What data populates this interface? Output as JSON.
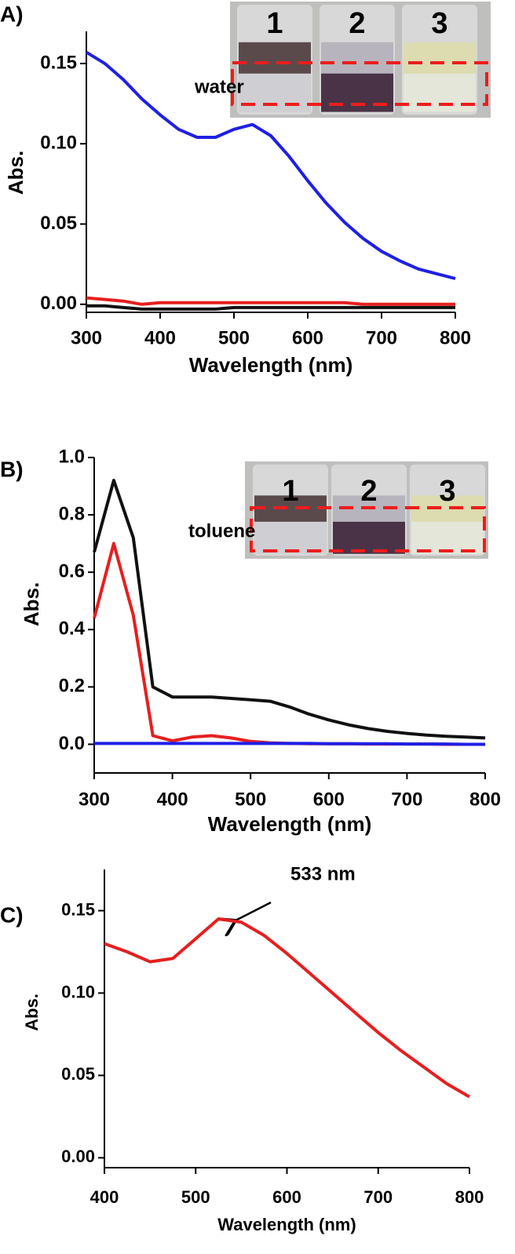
{
  "chart_data": [
    {
      "type": "line",
      "panel": "A)",
      "annotation": "water",
      "inset_labels": [
        "1",
        "2",
        "3"
      ],
      "x_label": "Wavelength (nm)",
      "y_label": "Abs.",
      "x": [
        300,
        325,
        350,
        375,
        400,
        425,
        450,
        475,
        500,
        525,
        550,
        575,
        600,
        625,
        650,
        675,
        700,
        725,
        750,
        775,
        800
      ],
      "series": [
        {
          "color": "#1f1fe6",
          "values": [
            0.157,
            0.15,
            0.14,
            0.128,
            0.118,
            0.109,
            0.104,
            0.104,
            0.109,
            0.112,
            0.105,
            0.092,
            0.077,
            0.063,
            0.051,
            0.041,
            0.033,
            0.027,
            0.022,
            0.019,
            0.016
          ]
        },
        {
          "color": "#e61f1f",
          "values": [
            0.004,
            0.003,
            0.002,
            0.0,
            0.001,
            0.001,
            0.001,
            0.001,
            0.001,
            0.001,
            0.001,
            0.001,
            0.001,
            0.001,
            0.001,
            0.0,
            0.0,
            0.0,
            0.0,
            0.0,
            0.0
          ]
        },
        {
          "color": "#111111",
          "values": [
            -0.001,
            -0.001,
            -0.002,
            -0.003,
            -0.003,
            -0.003,
            -0.003,
            -0.003,
            -0.002,
            -0.002,
            -0.002,
            -0.002,
            -0.002,
            -0.002,
            -0.002,
            -0.002,
            -0.002,
            -0.002,
            -0.002,
            -0.002,
            -0.002
          ]
        }
      ],
      "xlim": [
        300,
        800
      ],
      "xticks": [
        300,
        400,
        500,
        600,
        700,
        800
      ],
      "ylim": [
        -0.005,
        0.17
      ],
      "yticks": [
        {
          "value": 0,
          "label": "0.00"
        },
        {
          "value": 0.05,
          "label": "0.05"
        },
        {
          "value": 0.1,
          "label": "0.10"
        },
        {
          "value": 0.15,
          "label": "0.15"
        }
      ]
    },
    {
      "type": "line",
      "panel": "B)",
      "annotation": "toluene",
      "inset_labels": [
        "1",
        "2",
        "3"
      ],
      "x_label": "Wavelength (nm)",
      "y_label": "Abs.",
      "x": [
        300,
        325,
        350,
        375,
        400,
        425,
        450,
        475,
        500,
        525,
        550,
        575,
        600,
        625,
        650,
        675,
        700,
        725,
        750,
        775,
        800
      ],
      "series": [
        {
          "color": "#111111",
          "values": [
            0.67,
            0.92,
            0.72,
            0.2,
            0.165,
            0.165,
            0.165,
            0.16,
            0.155,
            0.15,
            0.13,
            0.105,
            0.085,
            0.068,
            0.055,
            0.045,
            0.038,
            0.032,
            0.028,
            0.025,
            0.022
          ]
        },
        {
          "color": "#e61f1f",
          "values": [
            0.44,
            0.7,
            0.45,
            0.03,
            0.012,
            0.025,
            0.03,
            0.022,
            0.01,
            0.005,
            0.003,
            0.002,
            0.002,
            0.002,
            0.001,
            0.001,
            0.001,
            0.001,
            0.0,
            0.0,
            0.0
          ]
        },
        {
          "color": "#1f1fe6",
          "values": [
            0.003,
            0.003,
            0.003,
            0.003,
            0.003,
            0.003,
            0.003,
            0.003,
            0.003,
            0.003,
            0.003,
            0.003,
            0.002,
            0.002,
            0.002,
            0.002,
            0.001,
            0.001,
            0.001,
            0.0,
            0.0
          ]
        }
      ],
      "xlim": [
        300,
        800
      ],
      "xticks": [
        300,
        400,
        500,
        600,
        700,
        800
      ],
      "ylim": [
        -0.1,
        1.0
      ],
      "yticks": [
        {
          "value": 0,
          "label": "0.0"
        },
        {
          "value": 0.2,
          "label": "0.2"
        },
        {
          "value": 0.4,
          "label": "0.4"
        },
        {
          "value": 0.6,
          "label": "0.6"
        },
        {
          "value": 0.8,
          "label": "0.8"
        },
        {
          "value": 1,
          "label": "1.0"
        }
      ]
    },
    {
      "type": "line",
      "panel": "C)",
      "annotation": "533 nm",
      "x_label": "Wavelength (nm)",
      "y_label": "Abs.",
      "x": [
        400,
        425,
        450,
        475,
        500,
        525,
        550,
        575,
        600,
        625,
        650,
        675,
        700,
        725,
        750,
        775,
        800
      ],
      "series": [
        {
          "color": "#e61f1f",
          "values": [
            0.13,
            0.125,
            0.119,
            0.121,
            0.133,
            0.145,
            0.143,
            0.135,
            0.124,
            0.112,
            0.1,
            0.088,
            0.076,
            0.065,
            0.055,
            0.045,
            0.037
          ]
        }
      ],
      "xlim": [
        400,
        800
      ],
      "xticks": [
        400,
        500,
        600,
        700,
        800
      ],
      "ylim": [
        -0.006,
        0.175
      ],
      "yticks": [
        {
          "value": 0,
          "label": "0.00"
        },
        {
          "value": 0.05,
          "label": "0.05"
        },
        {
          "value": 0.1,
          "label": "0.10"
        },
        {
          "value": 0.15,
          "label": "0.15"
        }
      ]
    }
  ]
}
